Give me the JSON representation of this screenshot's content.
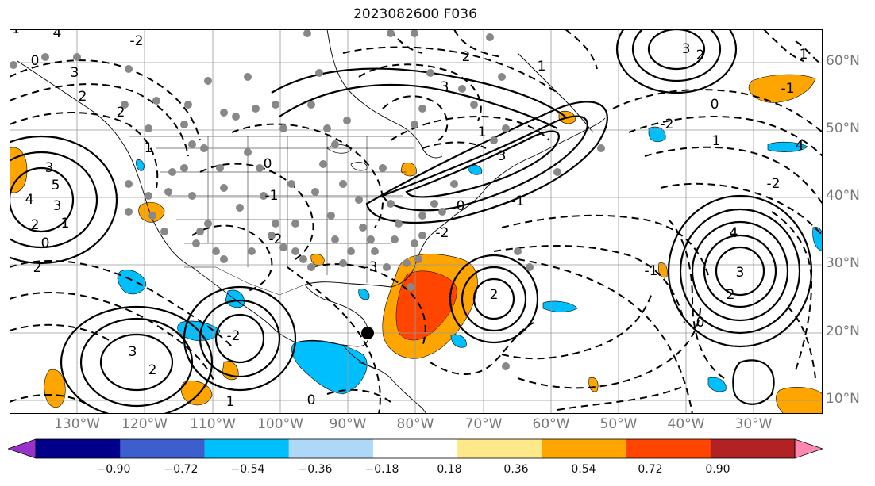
{
  "title": "2023082600 F036",
  "lat_labels": [
    {
      "text": "60°N",
      "lat": 60
    },
    {
      "text": "50°N",
      "lat": 50
    },
    {
      "text": "40°N",
      "lat": 40
    },
    {
      "text": "30°N",
      "lat": 30
    },
    {
      "text": "20°N",
      "lat": 20
    },
    {
      "text": "10°N",
      "lat": 10
    }
  ],
  "lon_labels": [
    {
      "text": "130°W",
      "lon": -130
    },
    {
      "text": "120°W",
      "lon": -120
    },
    {
      "text": "110°W",
      "lon": -110
    },
    {
      "text": "100°W",
      "lon": -100
    },
    {
      "text": "90°W",
      "lon": -90
    },
    {
      "text": "80°W",
      "lon": -80
    },
    {
      "text": "70°W",
      "lon": -70
    },
    {
      "text": "60°W",
      "lon": -60
    },
    {
      "text": "50°W",
      "lon": -50
    },
    {
      "text": "40°W",
      "lon": -40
    },
    {
      "text": "30°W",
      "lon": -30
    }
  ],
  "colorbar": {
    "colors": [
      "#9932cc",
      "#00008b",
      "#3c5fcd",
      "#00bfff",
      "#add8f8",
      "#ffffff",
      "#ffe88a",
      "#ffa500",
      "#ff4500",
      "#b22222",
      "#ff88b0"
    ],
    "ticks": [
      "−0.90",
      "−0.72",
      "−0.54",
      "−0.36",
      "−0.18",
      "0.18",
      "0.36",
      "0.54",
      "0.72",
      "0.90"
    ]
  },
  "contour_labels": [
    "4",
    "3",
    "2",
    "2",
    "1",
    "0",
    "-1",
    "-2",
    "3",
    "5",
    "4",
    "3",
    "2",
    "0",
    "1",
    "2",
    "4",
    "3",
    "2",
    "1",
    "0",
    "-1",
    "-2",
    "3",
    "2",
    "1",
    "0",
    "-1",
    "-2",
    "3",
    "2",
    "1",
    "0",
    "-2",
    "-1",
    "0",
    "-2",
    "-3",
    "-2",
    "-1",
    "0",
    "1",
    "2",
    "3",
    "4",
    "3",
    "2",
    "1"
  ],
  "storm_marker": {
    "lon": -86,
    "lat": 20
  }
}
